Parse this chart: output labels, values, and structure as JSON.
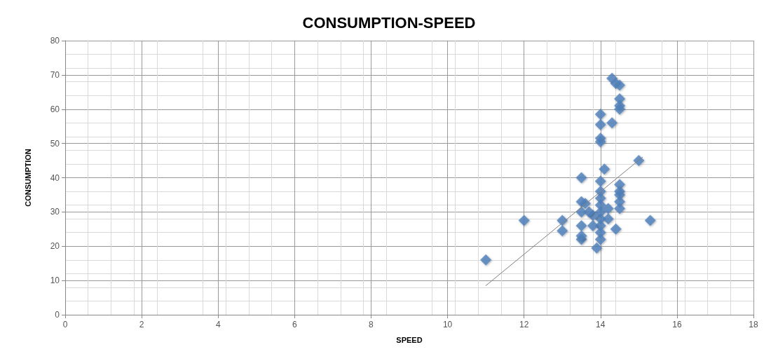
{
  "chart_data": {
    "type": "scatter",
    "title": "CONSUMPTION-SPEED",
    "xlabel": "SPEED",
    "ylabel": "CONSUMPTION",
    "xlim": [
      0,
      18
    ],
    "xticks": [
      0,
      2,
      4,
      6,
      8,
      10,
      12,
      14,
      16,
      18
    ],
    "ylim": [
      0,
      80
    ],
    "yticks": [
      0,
      10,
      20,
      30,
      40,
      50,
      60,
      70,
      80
    ],
    "grid": true,
    "marker": "diamond",
    "series": [
      {
        "color": "#4f81bd",
        "x": [
          11,
          12,
          13,
          13,
          13.5,
          13.5,
          13.5,
          13.5,
          13.5,
          13.5,
          14,
          14,
          14.3,
          14,
          14,
          14.1,
          14,
          14,
          14,
          14,
          14,
          14,
          14,
          14,
          14,
          13.9,
          13.8,
          13.8,
          14.3,
          14.4,
          14.5,
          14.5,
          14.5,
          14.5,
          14.4,
          14.5,
          14.5,
          14.5,
          14.5,
          14.5,
          15,
          15.3,
          14.2,
          14.2,
          13.7,
          13.6
        ],
        "values": [
          16,
          27.5,
          27.5,
          24.5,
          40,
          33,
          30,
          26,
          22,
          23,
          58.5,
          55.5,
          56,
          51.5,
          50.5,
          42.5,
          39,
          36,
          34,
          32,
          30,
          28,
          26,
          24,
          22,
          19.5,
          29,
          26,
          69,
          67.5,
          67,
          63,
          61,
          60,
          25,
          38,
          36,
          35,
          33,
          31,
          45,
          27.5,
          31,
          28,
          30,
          32.5
        ]
      },
      {
        "type": "line",
        "color": "#808080",
        "marker": "none",
        "line_style": "solid",
        "x": [
          11,
          15.1
        ],
        "values": [
          8.5,
          46
        ]
      }
    ]
  }
}
